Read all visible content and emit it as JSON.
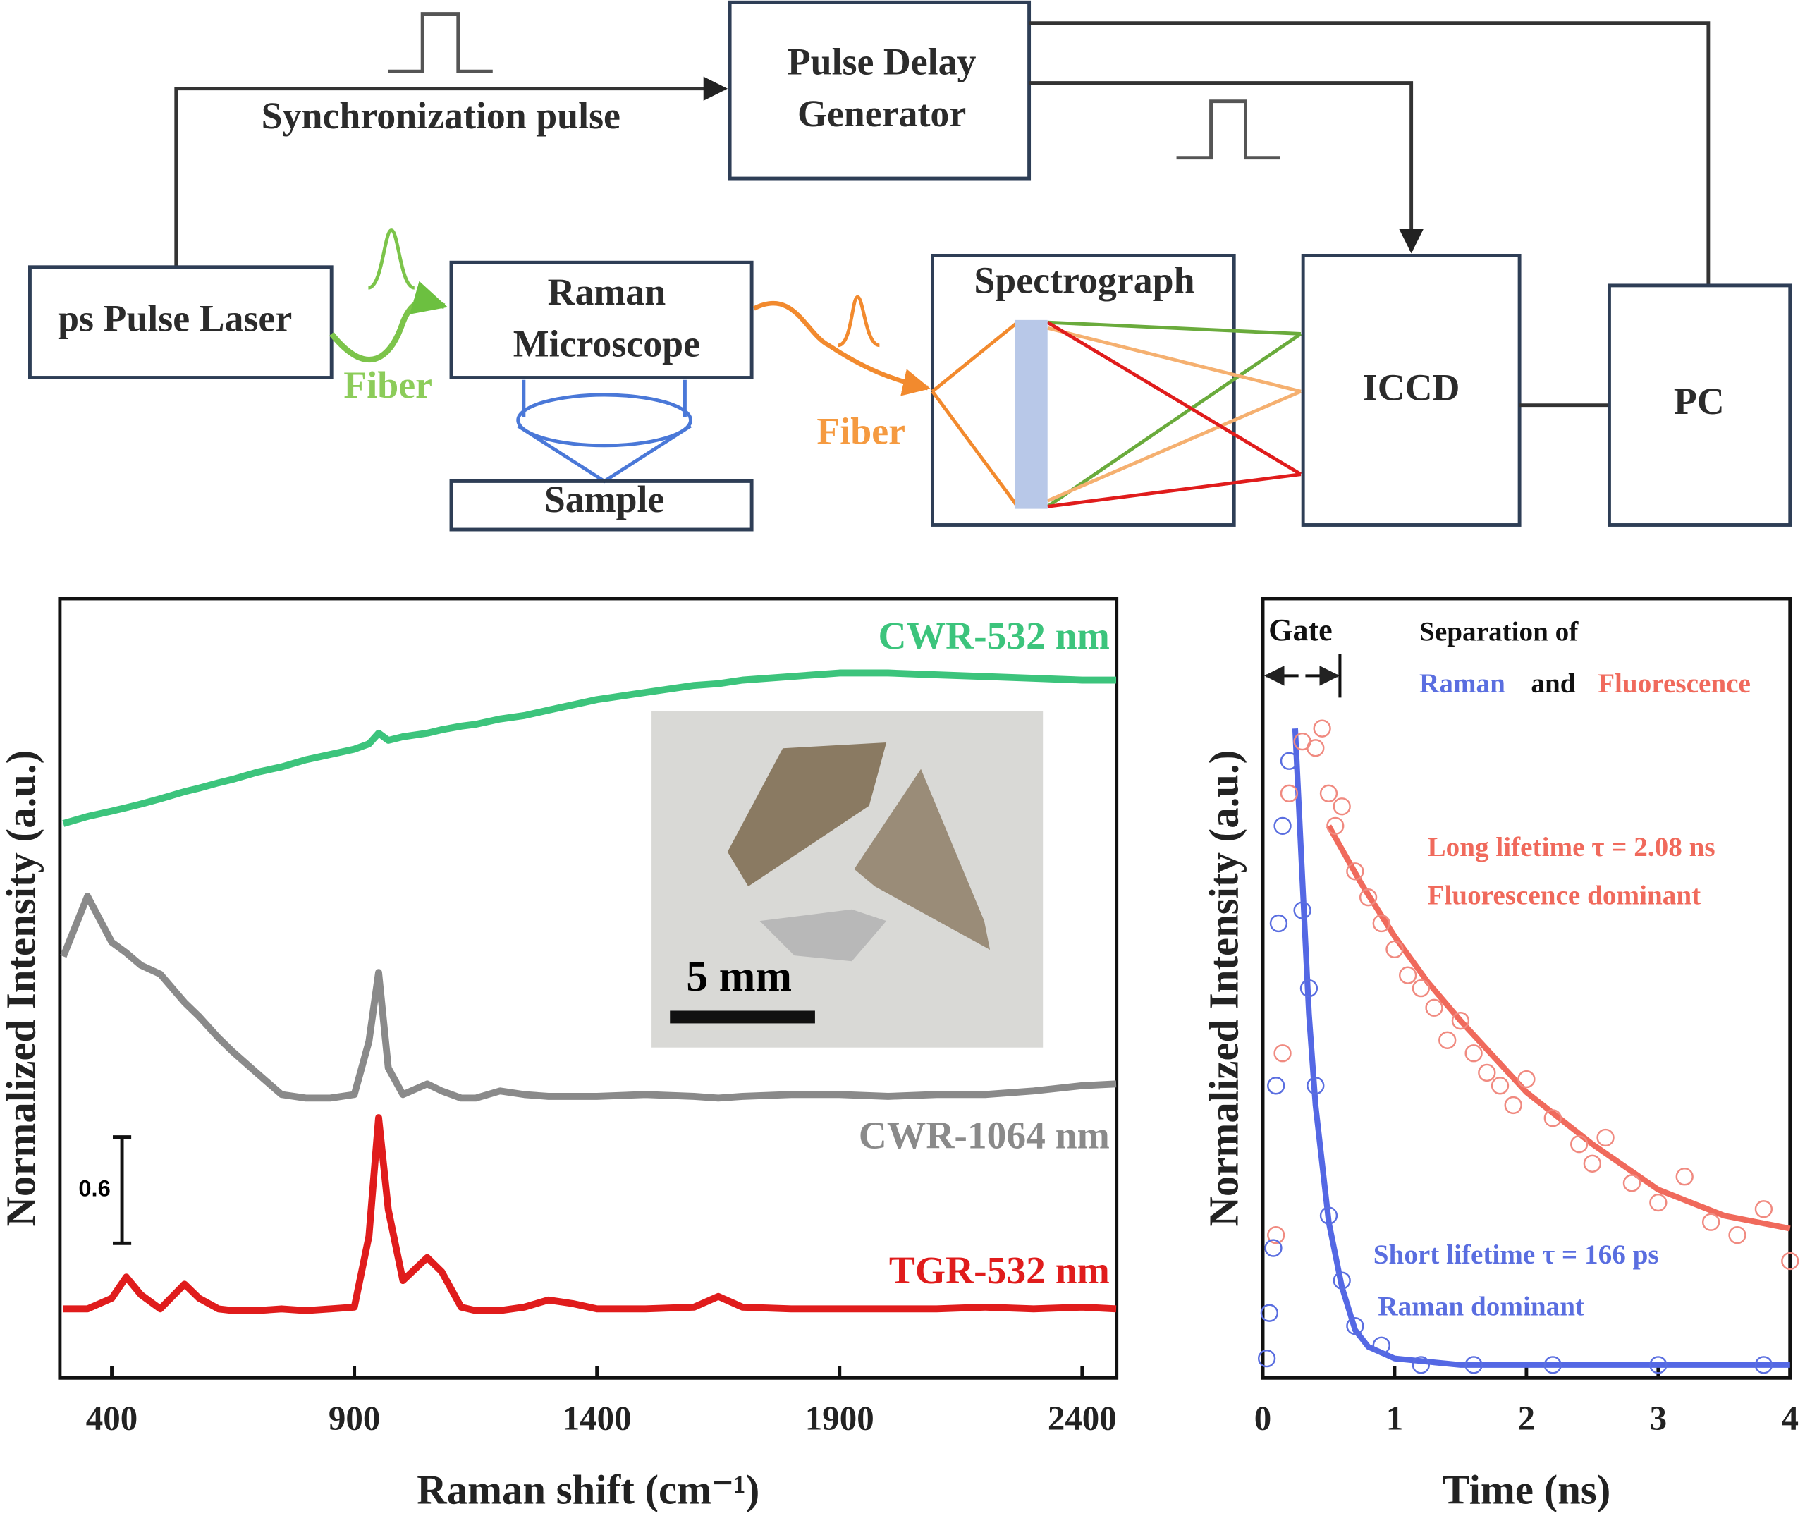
{
  "diagram": {
    "pulse_delay_generator": [
      "Pulse Delay",
      "Generator"
    ],
    "synchronization_pulse": "Synchronization pulse",
    "laser": "ps Pulse Laser",
    "microscope": [
      "Raman",
      "Microscope"
    ],
    "sample": "Sample",
    "spectrograph": "Spectrograph",
    "iccd": "ICCD",
    "pc": "PC",
    "fiber_labels": [
      "Fiber",
      "Fiber"
    ]
  },
  "chart_data": [
    {
      "type": "line",
      "x_label": "Raman shift (cm⁻¹)",
      "y_label": "Normalized Intensity (a.u.)",
      "xlim": [
        293,
        2471
      ],
      "ylim": [
        0,
        4.4
      ],
      "xticks": [
        400,
        900,
        1400,
        1900,
        2400
      ],
      "x": [
        300,
        350,
        400,
        430,
        460,
        500,
        550,
        580,
        620,
        650,
        700,
        750,
        800,
        850,
        900,
        930,
        950,
        970,
        1000,
        1050,
        1080,
        1120,
        1150,
        1200,
        1250,
        1300,
        1350,
        1400,
        1500,
        1600,
        1650,
        1700,
        1800,
        1900,
        2000,
        2100,
        2200,
        2300,
        2400,
        2470
      ],
      "series": [
        {
          "name": "CWR-532 nm",
          "color": "#3cc47c",
          "values": [
            3.13,
            3.17,
            3.2,
            3.22,
            3.24,
            3.27,
            3.31,
            3.33,
            3.36,
            3.38,
            3.42,
            3.45,
            3.49,
            3.52,
            3.55,
            3.58,
            3.64,
            3.6,
            3.62,
            3.64,
            3.66,
            3.68,
            3.69,
            3.72,
            3.74,
            3.77,
            3.8,
            3.83,
            3.87,
            3.91,
            3.92,
            3.94,
            3.96,
            3.98,
            3.98,
            3.97,
            3.96,
            3.95,
            3.94,
            3.94
          ]
        },
        {
          "name": "CWR-1064 nm",
          "color": "#8a8a8a",
          "values": [
            2.38,
            2.72,
            2.46,
            2.4,
            2.33,
            2.28,
            2.12,
            2.04,
            1.92,
            1.84,
            1.72,
            1.6,
            1.58,
            1.58,
            1.6,
            1.9,
            2.29,
            1.75,
            1.6,
            1.66,
            1.62,
            1.58,
            1.58,
            1.62,
            1.6,
            1.59,
            1.59,
            1.59,
            1.6,
            1.59,
            1.58,
            1.59,
            1.6,
            1.6,
            1.59,
            1.6,
            1.6,
            1.62,
            1.65,
            1.66
          ]
        },
        {
          "name": "TGR-532 nm",
          "color": "#e01c1c",
          "values": [
            0.39,
            0.39,
            0.45,
            0.57,
            0.47,
            0.39,
            0.53,
            0.45,
            0.39,
            0.38,
            0.38,
            0.39,
            0.38,
            0.39,
            0.4,
            0.8,
            1.47,
            0.95,
            0.55,
            0.68,
            0.6,
            0.4,
            0.38,
            0.38,
            0.4,
            0.44,
            0.42,
            0.39,
            0.39,
            0.4,
            0.46,
            0.4,
            0.39,
            0.39,
            0.39,
            0.39,
            0.4,
            0.39,
            0.4,
            0.39
          ]
        }
      ],
      "scale_bar": 0.6,
      "inset_label": "5 mm"
    },
    {
      "type": "scatter",
      "x_label": "Time (ns)",
      "y_label": "Normalized Intensity (a.u.)",
      "xlim": [
        0,
        4
      ],
      "ylim": [
        0,
        1.2
      ],
      "xticks": [
        0,
        1,
        2,
        3,
        4
      ],
      "series": [
        {
          "type": "line",
          "color": "#5468e4",
          "x": [
            0.245,
            0.3,
            0.35,
            0.4,
            0.5,
            0.6,
            0.7,
            0.8,
            1.0,
            1.5,
            2,
            3,
            4
          ],
          "values": [
            1.0,
            0.77,
            0.56,
            0.42,
            0.24,
            0.14,
            0.074,
            0.048,
            0.03,
            0.02,
            0.02,
            0.02,
            0.02
          ]
        },
        {
          "type": "line",
          "color": "#f06a5c",
          "x": [
            0.5,
            0.75,
            1.0,
            1.25,
            1.5,
            2.0,
            2.5,
            3.0,
            3.5,
            4.0
          ],
          "values": [
            0.85,
            0.76,
            0.68,
            0.61,
            0.55,
            0.44,
            0.36,
            0.29,
            0.25,
            0.23
          ]
        },
        {
          "type": "scatter",
          "color": "#f08a80",
          "x": [
            0.1,
            0.15,
            0.2,
            0.3,
            0.4,
            0.45,
            0.5,
            0.55,
            0.6,
            0.7,
            0.8,
            0.9,
            1.0,
            1.1,
            1.2,
            1.3,
            1.4,
            1.5,
            1.6,
            1.7,
            1.8,
            1.9,
            2.0,
            2.2,
            2.4,
            2.5,
            2.6,
            2.8,
            3.0,
            3.2,
            3.4,
            3.6,
            3.8,
            4.0
          ],
          "values": [
            0.22,
            0.5,
            0.9,
            0.98,
            0.97,
            1.0,
            0.9,
            0.85,
            0.88,
            0.78,
            0.74,
            0.7,
            0.66,
            0.62,
            0.6,
            0.57,
            0.52,
            0.55,
            0.5,
            0.47,
            0.45,
            0.42,
            0.46,
            0.4,
            0.36,
            0.33,
            0.37,
            0.3,
            0.27,
            0.31,
            0.24,
            0.22,
            0.26,
            0.18
          ]
        },
        {
          "type": "scatter",
          "color": "#5a6ee0",
          "x": [
            0.03,
            0.05,
            0.08,
            0.1,
            0.12,
            0.15,
            0.2,
            0.3,
            0.35,
            0.4,
            0.5,
            0.6,
            0.7,
            0.9,
            1.2,
            1.6,
            2.2,
            3.0,
            3.8
          ],
          "values": [
            0.03,
            0.1,
            0.2,
            0.45,
            0.7,
            0.85,
            0.95,
            0.72,
            0.6,
            0.45,
            0.25,
            0.15,
            0.08,
            0.05,
            0.02,
            0.02,
            0.02,
            0.02,
            0.02
          ]
        }
      ],
      "annotations": {
        "gate": "Gate",
        "separation": [
          "Separation of",
          "Raman",
          "and",
          "Fluorescence"
        ],
        "long": [
          "Long lifetime τ = 2.08 ns",
          "Fluorescence dominant"
        ],
        "short": [
          "Short lifetime τ = 166 ps",
          "Raman dominant"
        ]
      }
    }
  ]
}
